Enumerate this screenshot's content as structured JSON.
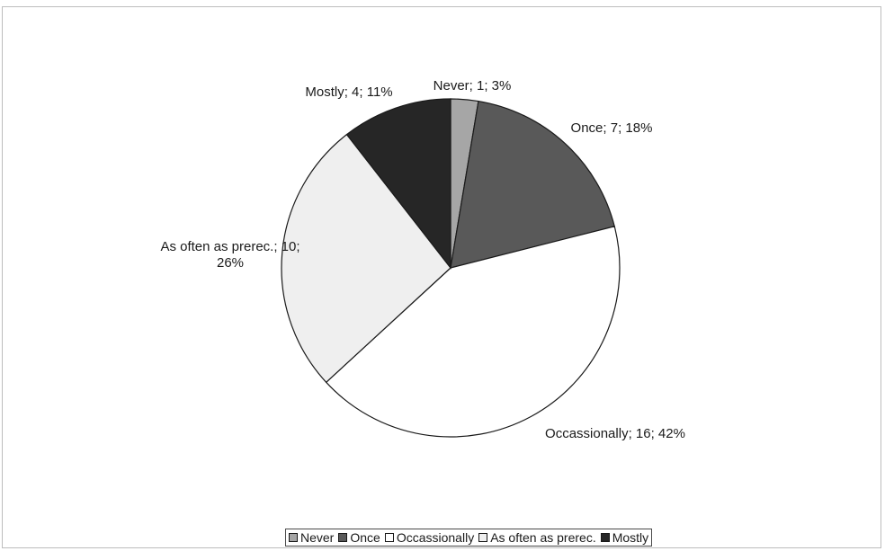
{
  "chart_data": {
    "type": "pie",
    "title": "",
    "slices": [
      {
        "name": "Never",
        "value": 1,
        "percent": 3,
        "label": "Never; 1; 3%",
        "color": "#a6a6a6"
      },
      {
        "name": "Once",
        "value": 7,
        "percent": 18,
        "label": "Once; 7; 18%",
        "color": "#595959"
      },
      {
        "name": "Occassionally",
        "value": 16,
        "percent": 42,
        "label": "Occassionally; 16; 42%",
        "color": "#ffffff"
      },
      {
        "name": "As often as prerec.",
        "value": 10,
        "percent": 26,
        "label": "As often as prerec.; 10; 26%",
        "color": "#efefef"
      },
      {
        "name": "Mostly",
        "value": 4,
        "percent": 11,
        "label": "Mostly; 4; 11%",
        "color": "#262626"
      }
    ],
    "legend": {
      "placement": "bottom",
      "entries": [
        "Never",
        "Once",
        "Occassionally",
        "As often as prerec.",
        "Mostly"
      ]
    }
  }
}
